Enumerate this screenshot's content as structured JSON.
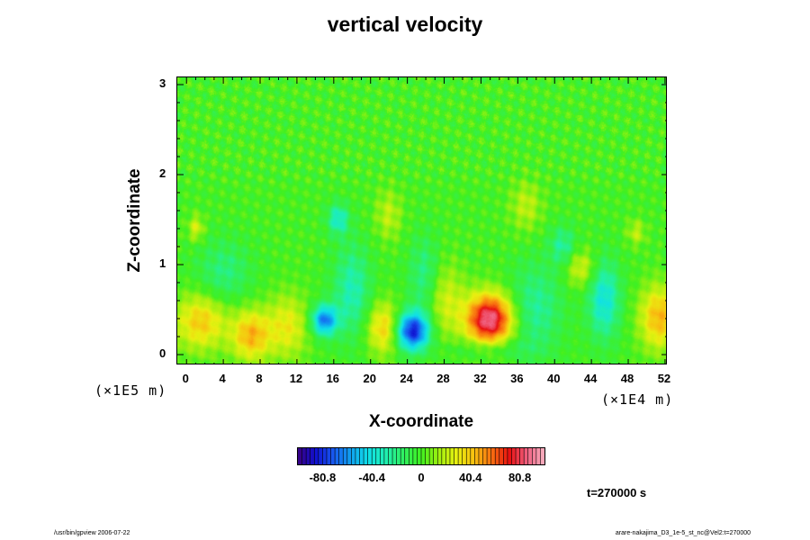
{
  "chart_data": {
    "type": "heatmap",
    "title": "vertical velocity",
    "xlabel": "X-coordinate",
    "ylabel": "Z-coordinate",
    "x_unit": "(×1E4 m)",
    "y_unit": "(×1E5 m)",
    "xlim": [
      -1,
      52.3
    ],
    "ylim": [
      -0.12,
      3.08
    ],
    "x_ticks": [
      "0",
      "4",
      "8",
      "12",
      "16",
      "20",
      "24",
      "28",
      "32",
      "36",
      "40",
      "44",
      "48",
      "52"
    ],
    "y_ticks": [
      "0",
      "1",
      "2",
      "3"
    ],
    "background_value": 0,
    "features": [
      {
        "x": 33,
        "y": 0.38,
        "value": 90,
        "sx": 1.8,
        "sy": 0.2
      },
      {
        "x": 24.6,
        "y": 0.25,
        "value": -85,
        "sx": 1.3,
        "sy": 0.15
      },
      {
        "x": 15,
        "y": 0.37,
        "value": -65,
        "sx": 1.0,
        "sy": 0.12
      },
      {
        "x": 45.5,
        "y": 0.6,
        "value": -40,
        "sx": 1.2,
        "sy": 0.3
      },
      {
        "x": 7,
        "y": 0.2,
        "value": 45,
        "sx": 1.5,
        "sy": 0.2
      },
      {
        "x": 1.5,
        "y": 0.35,
        "value": 40,
        "sx": 2.0,
        "sy": 0.22
      },
      {
        "x": 21.5,
        "y": 0.28,
        "value": 40,
        "sx": 1.3,
        "sy": 0.2
      },
      {
        "x": 51.5,
        "y": 0.4,
        "value": 45,
        "sx": 1.5,
        "sy": 0.25
      },
      {
        "x": 11,
        "y": 0.3,
        "value": 30,
        "sx": 1.6,
        "sy": 0.25
      },
      {
        "x": 28,
        "y": 0.6,
        "value": 25,
        "sx": 1.5,
        "sy": 0.3
      },
      {
        "x": 18,
        "y": 0.7,
        "value": -30,
        "sx": 1.4,
        "sy": 0.35
      },
      {
        "x": 38,
        "y": 0.5,
        "value": -25,
        "sx": 2.0,
        "sy": 0.35
      },
      {
        "x": 4,
        "y": 0.9,
        "value": -20,
        "sx": 2.0,
        "sy": 0.25
      },
      {
        "x": 26,
        "y": 0.85,
        "value": -25,
        "sx": 1.2,
        "sy": 0.3
      },
      {
        "x": 16.5,
        "y": 1.5,
        "value": -35,
        "sx": 0.8,
        "sy": 0.12
      },
      {
        "x": 41,
        "y": 1.2,
        "value": -25,
        "sx": 1.0,
        "sy": 0.15
      },
      {
        "x": 33,
        "y": 0.05,
        "value": -15,
        "sx": 3.0,
        "sy": 0.08
      },
      {
        "x": 43,
        "y": 0.95,
        "value": 25,
        "sx": 1.2,
        "sy": 0.15
      },
      {
        "x": 22,
        "y": 1.55,
        "value": 20,
        "sx": 1.0,
        "sy": 0.2
      },
      {
        "x": 37,
        "y": 1.65,
        "value": 20,
        "sx": 1.2,
        "sy": 0.2
      },
      {
        "x": 49,
        "y": 1.35,
        "value": 20,
        "sx": 0.7,
        "sy": 0.1
      },
      {
        "x": 1,
        "y": 1.4,
        "value": 25,
        "sx": 0.6,
        "sy": 0.1
      }
    ],
    "colorbar": {
      "min": -101,
      "max": 101,
      "tick_values": [
        -80.8,
        -40.4,
        0,
        40.4,
        80.8
      ],
      "tick_labels": [
        "-80.8",
        "-40.4",
        "0",
        "40.4",
        "80.8"
      ],
      "colors": [
        "#3a0080",
        "#1010d0",
        "#1858f0",
        "#10a0f0",
        "#10e0e8",
        "#20f0b0",
        "#30f060",
        "#40f020",
        "#a0f010",
        "#e8f010",
        "#f8c010",
        "#f87010",
        "#e81010",
        "#f06080",
        "#f8b0c0"
      ]
    }
  },
  "time_label": "t=270000 s",
  "footer_left": "/usr/bin/gpview 2006-07-22",
  "footer_right": "arare-nakajima_D3_1e-5_st_nc@Vel2:t=270000"
}
